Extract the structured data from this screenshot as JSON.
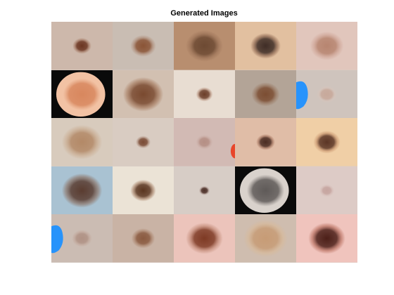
{
  "figure": {
    "title": "Generated Images"
  },
  "grid": {
    "rows": 5,
    "cols": 5
  },
  "tiles": [
    {
      "bg": "#cdb8ab",
      "lesion": "#6b3521",
      "halo": "#a77c67",
      "size": 0.28,
      "style": "normal"
    },
    {
      "bg": "#c9bdb3",
      "lesion": "#8a5436",
      "halo": "#b08f7c",
      "size": 0.38,
      "style": "normal"
    },
    {
      "bg": "#b88e6f",
      "lesion": "#6d4a33",
      "halo": "#9b7257",
      "size": 0.55,
      "style": "normal"
    },
    {
      "bg": "#e2c0a0",
      "lesion": "#3f2d26",
      "halo": "#8d6650",
      "size": 0.45,
      "style": "normal"
    },
    {
      "bg": "#e1c6bc",
      "lesion": "#b78570",
      "halo": "#cfa597",
      "size": 0.5,
      "style": "normal"
    },
    {
      "bg": "#0a0a0a",
      "lesion": "#d8875e",
      "halo": "#f2c2a4",
      "size": 0.7,
      "style": "dark-ring"
    },
    {
      "bg": "#d2c0b1",
      "lesion": "#7a4a30",
      "halo": "#a3765a",
      "size": 0.6,
      "style": "normal"
    },
    {
      "bg": "#e8ddd2",
      "lesion": "#6c3e29",
      "halo": "#b99480",
      "size": 0.25,
      "style": "normal"
    },
    {
      "bg": "#b3a497",
      "lesion": "#7c4e33",
      "halo": "#9a7a64",
      "size": 0.42,
      "style": "normal"
    },
    {
      "bg": "#cfc4bd",
      "lesion": "#c8a99b",
      "halo": "#d6c4bb",
      "size": 0.3,
      "style": "blue-patch"
    },
    {
      "bg": "#d8cbbd",
      "lesion": "#b38967",
      "halo": "#c9ab8f",
      "size": 0.6,
      "style": "normal"
    },
    {
      "bg": "#d9ccc2",
      "lesion": "#7a4b35",
      "halo": "#b09180",
      "size": 0.22,
      "style": "normal"
    },
    {
      "bg": "#d2bab4",
      "lesion": "#b58f85",
      "halo": "#c8aaa2",
      "size": 0.25,
      "style": "red-corner"
    },
    {
      "bg": "#e0bda7",
      "lesion": "#4b2c22",
      "halo": "#a77660",
      "size": 0.28,
      "style": "normal"
    },
    {
      "bg": "#f0cfa6",
      "lesion": "#5b3525",
      "halo": "#c8946d",
      "size": 0.4,
      "style": "normal"
    },
    {
      "bg": "#a9c2d2",
      "lesion": "#5a3c30",
      "halo": "#8a6c5c",
      "size": 0.6,
      "style": "normal"
    },
    {
      "bg": "#ebe3d6",
      "lesion": "#5a3520",
      "halo": "#a47d63",
      "size": 0.38,
      "style": "normal"
    },
    {
      "bg": "#d7cdc6",
      "lesion": "#4d3028",
      "halo": "#a8918a",
      "size": 0.16,
      "style": "normal"
    },
    {
      "bg": "#0a0a0a",
      "lesion": "#5f5a58",
      "halo": "#d9d2cc",
      "size": 0.7,
      "style": "dark-ring"
    },
    {
      "bg": "#ddcbc6",
      "lesion": "#c6a5a0",
      "halo": "#d6bdb8",
      "size": 0.22,
      "style": "normal"
    },
    {
      "bg": "#cbbcb3",
      "lesion": "#b09285",
      "halo": "#c3a99d",
      "size": 0.3,
      "style": "blue-patch"
    },
    {
      "bg": "#c9b3a5",
      "lesion": "#8a5a40",
      "halo": "#ad8770",
      "size": 0.35,
      "style": "normal"
    },
    {
      "bg": "#ecc4bb",
      "lesion": "#7e3a24",
      "halo": "#c08773",
      "size": 0.55,
      "style": "normal"
    },
    {
      "bg": "#cfbdaf",
      "lesion": "#c79c76",
      "halo": "#d8b998",
      "size": 0.65,
      "style": "normal"
    },
    {
      "bg": "#f0c4bd",
      "lesion": "#4c1f18",
      "halo": "#b66b5a",
      "size": 0.55,
      "style": "normal"
    }
  ]
}
